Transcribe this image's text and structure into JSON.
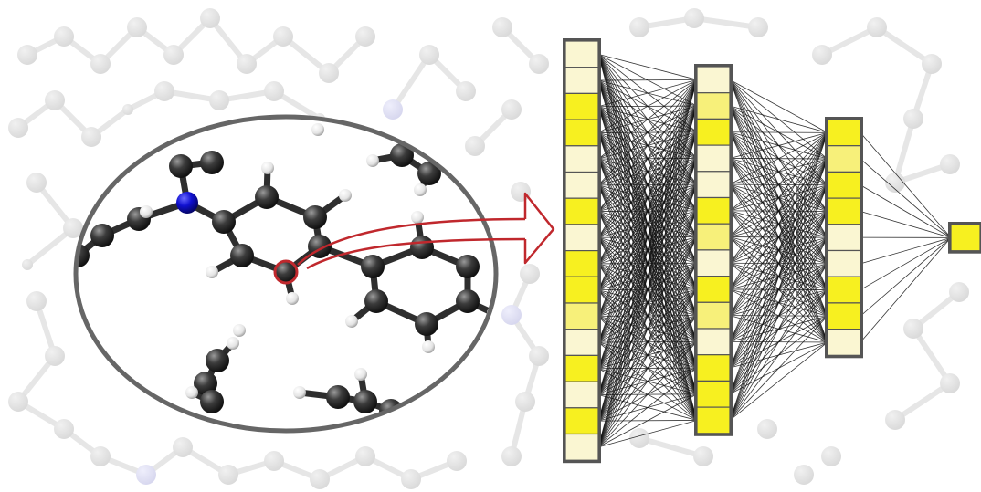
{
  "colors": {
    "background": "#ffffff",
    "atom_carbon": "#3a3a3a",
    "atom_hydrogen": "#f2f2f2",
    "atom_nitrogen": "#1010d0",
    "highlight_ring": "#c0282d",
    "arrow": "#c0282d",
    "circle_outline": "#666666",
    "connection": "#111111",
    "node_border": "#555555",
    "node_active": "#f7f020",
    "node_mid": "#f7f07a",
    "node_dim": "#faf6d2"
  },
  "icons": {
    "magnifier": "magnifier-circle-icon",
    "molecule": "molecule-icon",
    "arrow": "curved-arrow-icon"
  },
  "network": {
    "layers": [
      {
        "name": "input-layer",
        "activations": [
          0.1,
          0.3,
          0.9,
          0.9,
          0.3,
          0.2,
          0.9,
          0.3,
          0.9,
          0.8,
          0.6,
          0.3,
          0.8,
          0.3,
          0.9,
          0.2
        ]
      },
      {
        "name": "hidden-layer-1",
        "activations": [
          0.1,
          0.5,
          0.9,
          0.3,
          0.1,
          0.9,
          0.6,
          0.1,
          0.9,
          0.5,
          0.1,
          0.9,
          0.9,
          0.8
        ]
      },
      {
        "name": "hidden-layer-2",
        "activations": [
          0.9,
          0.6,
          0.9,
          0.9,
          0.2,
          0.1,
          0.9,
          0.8,
          0.1
        ]
      },
      {
        "name": "output-layer",
        "activations": [
          0.9
        ]
      }
    ]
  }
}
